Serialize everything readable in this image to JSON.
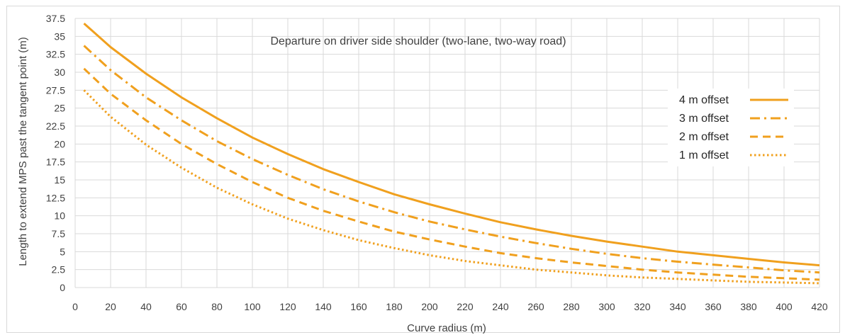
{
  "chart_data": {
    "type": "line",
    "title": "Departure on driver side shoulder (two-lane, two-way road)",
    "xlabel": "Curve radius (m)",
    "ylabel": "Length to extend MPS past the tangent point (m)",
    "xlim": [
      0,
      420
    ],
    "ylim": [
      0,
      37.5
    ],
    "xticks": [
      0,
      20,
      40,
      60,
      80,
      100,
      120,
      140,
      160,
      180,
      200,
      220,
      240,
      260,
      280,
      300,
      320,
      340,
      360,
      380,
      400,
      420
    ],
    "yticks": [
      0,
      2.5,
      5,
      7.5,
      10,
      12.5,
      15,
      17.5,
      20,
      22.5,
      25,
      27.5,
      30,
      32.5,
      35,
      37.5
    ],
    "grid": true,
    "legend_position": "right",
    "x": [
      5,
      20,
      40,
      60,
      80,
      100,
      120,
      140,
      160,
      180,
      200,
      220,
      240,
      260,
      280,
      300,
      320,
      340,
      360,
      380,
      400,
      420
    ],
    "series": [
      {
        "name": "4 m offset",
        "dash": "solid",
        "values": [
          36.8,
          33.5,
          29.8,
          26.5,
          23.6,
          20.9,
          18.6,
          16.5,
          14.7,
          13.0,
          11.6,
          10.3,
          9.1,
          8.1,
          7.2,
          6.4,
          5.7,
          5.0,
          4.5,
          4.0,
          3.5,
          3.1
        ]
      },
      {
        "name": "3 m offset",
        "dash": "dashdot",
        "values": [
          33.7,
          30.3,
          26.5,
          23.3,
          20.4,
          17.9,
          15.7,
          13.7,
          12.0,
          10.5,
          9.2,
          8.1,
          7.1,
          6.2,
          5.4,
          4.7,
          4.1,
          3.6,
          3.2,
          2.8,
          2.4,
          2.1
        ]
      },
      {
        "name": "2 m offset",
        "dash": "dash",
        "values": [
          30.5,
          27.0,
          23.3,
          20.0,
          17.2,
          14.7,
          12.5,
          10.7,
          9.2,
          7.8,
          6.7,
          5.7,
          4.8,
          4.1,
          3.5,
          3.0,
          2.5,
          2.1,
          1.8,
          1.5,
          1.3,
          1.1
        ]
      },
      {
        "name": "1 m offset",
        "dash": "dot",
        "values": [
          27.5,
          23.8,
          19.9,
          16.7,
          13.9,
          11.6,
          9.6,
          8.0,
          6.6,
          5.5,
          4.5,
          3.7,
          3.1,
          2.5,
          2.1,
          1.7,
          1.4,
          1.2,
          1.0,
          0.8,
          0.7,
          0.6
        ]
      }
    ]
  },
  "colors": {
    "series": "#f0a01e",
    "grid": "#d9d9d9",
    "text": "#404040"
  }
}
